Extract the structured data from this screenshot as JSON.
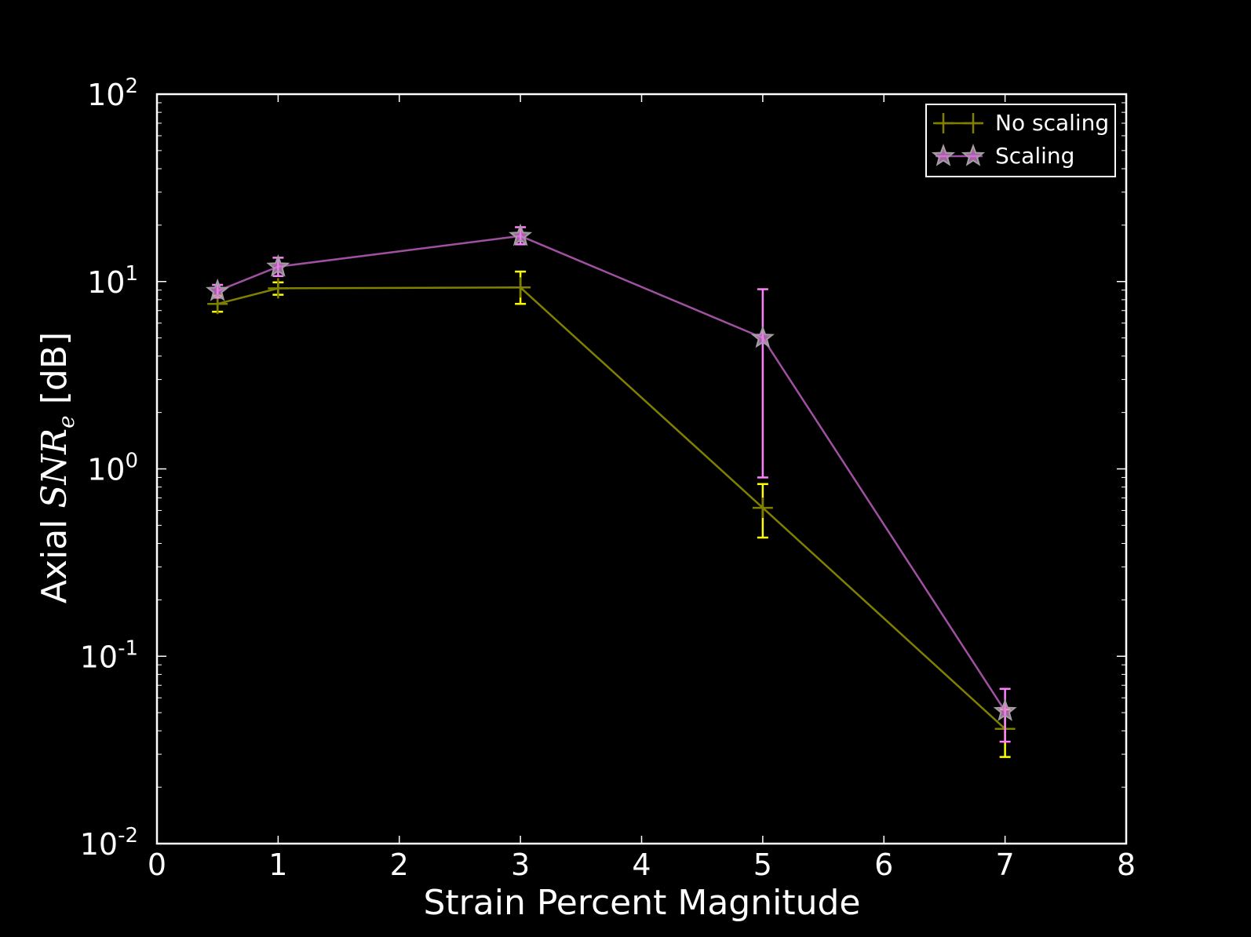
{
  "chart_data": {
    "type": "line",
    "title": "",
    "xlabel": "Strain Percent Magnitude",
    "ylabel_prefix": "Axial ",
    "ylabel_math": "SNR",
    "ylabel_sub": "e",
    "ylabel_suffix": " [dB]",
    "xlim": [
      0,
      8
    ],
    "ylim": [
      0.01,
      100
    ],
    "yscale": "log",
    "x_ticks": [
      0,
      1,
      2,
      3,
      4,
      5,
      6,
      7,
      8
    ],
    "y_ticks": [
      {
        "value": 0.01,
        "base": "10",
        "exp": "-2"
      },
      {
        "value": 0.1,
        "base": "10",
        "exp": "-1"
      },
      {
        "value": 1,
        "base": "10",
        "exp": "0"
      },
      {
        "value": 10,
        "base": "10",
        "exp": "1"
      },
      {
        "value": 100,
        "base": "10",
        "exp": "2"
      }
    ],
    "grid": false,
    "legend_position": "top-right",
    "series": [
      {
        "name": "No scaling",
        "marker": "plus",
        "line_color": "#808000",
        "errorbar_color": "#ffff00",
        "x": [
          0.5,
          1,
          3,
          5,
          7
        ],
        "y": [
          7.6,
          9.2,
          9.3,
          0.62,
          0.041
        ],
        "y_low": [
          6.9,
          8.5,
          7.6,
          0.43,
          0.029
        ],
        "y_high": [
          8.4,
          9.9,
          11.3,
          0.83,
          0.052
        ]
      },
      {
        "name": "Scaling",
        "marker": "star",
        "line_color": "#a050a0",
        "marker_fill": "#e080e0",
        "marker_edge": "#a0a0a0",
        "errorbar_color": "#ff80ff",
        "x": [
          0.5,
          1,
          3,
          5,
          7
        ],
        "y": [
          8.9,
          12.0,
          17.5,
          5.0,
          0.051
        ],
        "y_low": [
          8.2,
          10.7,
          15.8,
          0.9,
          0.035
        ],
        "y_high": [
          9.6,
          13.4,
          19.5,
          9.1,
          0.067
        ]
      }
    ]
  }
}
